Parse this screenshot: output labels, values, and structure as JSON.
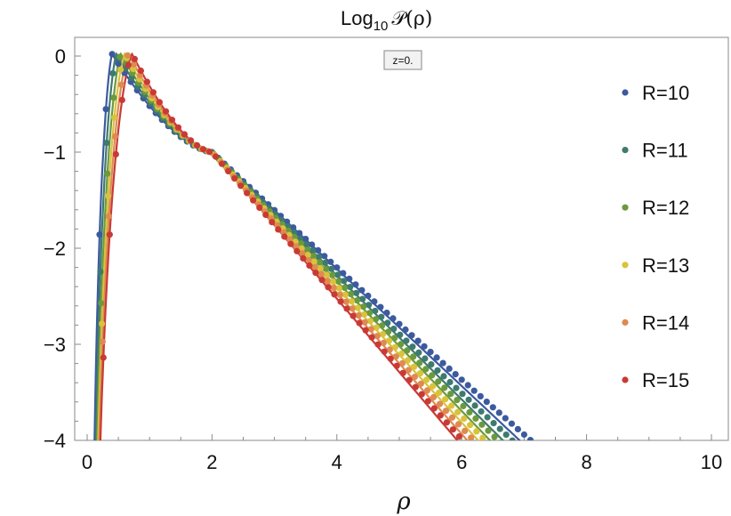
{
  "chart_data": {
    "type": "scatter",
    "title": "Log",
    "title_subscript": "10",
    "title_function": "𝒫(ρ)",
    "xlabel": "ρ",
    "ylabel": "",
    "annotation": "z=0.",
    "xlim": [
      -0.2,
      10.2
    ],
    "ylim": [
      -4,
      0.2
    ],
    "x_ticks": [
      0,
      2,
      4,
      6,
      8,
      10
    ],
    "y_ticks": [
      0,
      -1,
      -2,
      -3,
      -4
    ],
    "x_tick_labels": [
      "0",
      "2",
      "4",
      "6",
      "8",
      "10"
    ],
    "y_tick_labels": [
      "0",
      "−1",
      "−2",
      "−3",
      "−4"
    ],
    "grid": false,
    "legend_position": "right",
    "series": [
      {
        "name": "R=10",
        "color": "#3c5a9e",
        "R": 10,
        "peak": 0.4,
        "slope_tail": -0.605,
        "anchor": [
          2.0,
          -1.0
        ]
      },
      {
        "name": "R=11",
        "color": "#3e7a6e",
        "R": 11,
        "peak": 0.47,
        "slope_tail": -0.64,
        "anchor": [
          2.0,
          -1.0
        ]
      },
      {
        "name": "R=12",
        "color": "#6a9a3e",
        "R": 12,
        "peak": 0.54,
        "slope_tail": -0.67,
        "anchor": [
          2.0,
          -1.0
        ]
      },
      {
        "name": "R=13",
        "color": "#d9c23c",
        "R": 13,
        "peak": 0.6,
        "slope_tail": -0.7,
        "anchor": [
          2.0,
          -1.0
        ]
      },
      {
        "name": "R=14",
        "color": "#de8a52",
        "R": 14,
        "peak": 0.66,
        "slope_tail": -0.73,
        "anchor": [
          2.0,
          -1.0
        ]
      },
      {
        "name": "R=15",
        "color": "#c93a35",
        "R": 15,
        "peak": 0.72,
        "slope_tail": -0.76,
        "anchor": [
          2.0,
          -1.0
        ]
      }
    ]
  }
}
